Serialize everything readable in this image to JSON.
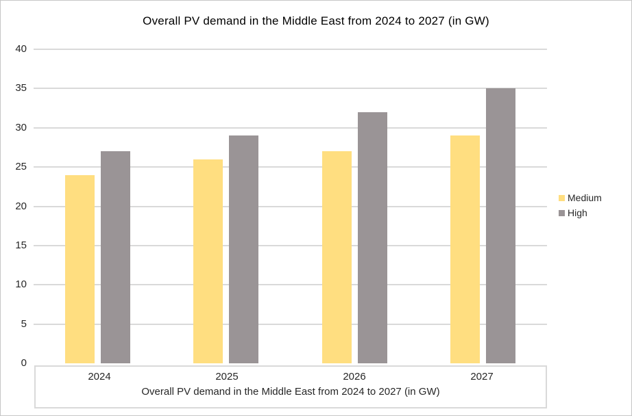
{
  "chart_title": "Overall PV demand in the Middle East from 2024 to 2027 (in GW)",
  "colors": {
    "medium_bar": "#FFDE80",
    "high_bar": "#9A9496",
    "gridline": "#D9D9D9",
    "axis_box_border": "#D9D9D9",
    "frame_border": "#C6C6C6",
    "text": "#262626",
    "title_text": "#000000"
  },
  "chart_data": {
    "type": "bar",
    "title": "Overall PV demand in the Middle East from 2024 to 2027 (in GW)",
    "categories": [
      "2024",
      "2025",
      "2026",
      "2027"
    ],
    "series": [
      {
        "name": "Medium",
        "color": "#FFDE80",
        "values": [
          24,
          26,
          27,
          29
        ]
      },
      {
        "name": "High",
        "color": "#9A9496",
        "values": [
          27,
          29,
          32,
          35
        ]
      }
    ],
    "xlabel": "Overall PV demand in the Middle East from 2024 to 2027 (in GW)",
    "ylabel": "",
    "ylim": [
      0,
      40
    ],
    "yticks": [
      0,
      5,
      10,
      15,
      20,
      25,
      30,
      35,
      40
    ],
    "grid": true,
    "gridline_color": "#D9D9D9",
    "legend_position": "right"
  }
}
